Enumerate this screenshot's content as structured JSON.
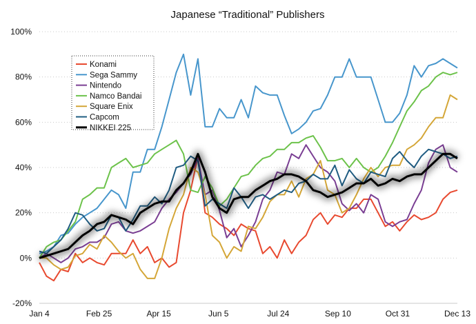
{
  "chart_data": {
    "type": "line",
    "title": "Japanese “Traditional” Publishers",
    "xlabel": "",
    "ylabel": "",
    "ylim": [
      -20,
      100
    ],
    "yticks": [
      "-20%",
      "0%",
      "20%",
      "40%",
      "60%",
      "80%",
      "100%"
    ],
    "xticks": [
      "Jan 4",
      "Feb 25",
      "Apr 15",
      "Jun 5",
      "Jul 24",
      "Sep 10",
      "Oct 31",
      "Dec 13"
    ],
    "grid": true,
    "legend_position": "top-left",
    "series": [
      {
        "name": "Konami",
        "color": "#e8492f",
        "values": [
          -2,
          -8,
          -10,
          -5,
          -6,
          2,
          -2,
          0,
          -2,
          -3,
          2,
          2,
          2,
          8,
          2,
          5,
          -2,
          0,
          -4,
          -2,
          20,
          30,
          45,
          20,
          18,
          15,
          13,
          10,
          15,
          13,
          12,
          2,
          5,
          0,
          8,
          2,
          7,
          10,
          17,
          20,
          15,
          19,
          18,
          22,
          22,
          26,
          26,
          20,
          14,
          16,
          12,
          16,
          19,
          17,
          18,
          20,
          26,
          29,
          30
        ]
      },
      {
        "name": "Sega Sammy",
        "color": "#4796cc",
        "values": [
          2,
          3,
          5,
          10,
          11,
          15,
          18,
          20,
          22,
          26,
          30,
          28,
          22,
          38,
          38,
          48,
          48,
          58,
          70,
          82,
          90,
          72,
          88,
          58,
          58,
          66,
          62,
          62,
          70,
          62,
          76,
          73,
          72,
          72,
          63,
          55,
          57,
          60,
          65,
          66,
          72,
          80,
          80,
          88,
          80,
          80,
          80,
          70,
          60,
          60,
          64,
          72,
          85,
          80,
          85,
          86,
          88,
          86,
          84
        ]
      },
      {
        "name": "Nintendo",
        "color": "#7a3e93",
        "values": [
          0,
          2,
          0,
          -2,
          0,
          4,
          5,
          7,
          7,
          9,
          15,
          16,
          12,
          11,
          12,
          14,
          16,
          22,
          26,
          29,
          33,
          37,
          44,
          28,
          30,
          21,
          9,
          13,
          5,
          10,
          16,
          26,
          30,
          38,
          37,
          46,
          44,
          50,
          45,
          40,
          38,
          34,
          24,
          21,
          24,
          20,
          28,
          26,
          16,
          14,
          16,
          17,
          24,
          30,
          42,
          48,
          50,
          40,
          38
        ]
      },
      {
        "name": "Namco Bandai",
        "color": "#6cc24a",
        "values": [
          0,
          5,
          7,
          8,
          12,
          16,
          26,
          28,
          31,
          31,
          40,
          42,
          44,
          40,
          41,
          42,
          46,
          48,
          50,
          52,
          46,
          30,
          29,
          36,
          31,
          23,
          26,
          31,
          36,
          37,
          41,
          44,
          45,
          48,
          48,
          51,
          51,
          53,
          54,
          49,
          43,
          43,
          44,
          40,
          44,
          40,
          38,
          40,
          45,
          51,
          58,
          65,
          69,
          74,
          76,
          80,
          82,
          81,
          82
        ]
      },
      {
        "name": "Square Enix",
        "color": "#d4a637",
        "values": [
          0,
          0,
          -3,
          -5,
          -4,
          1,
          2,
          6,
          4,
          10,
          7,
          3,
          0,
          2,
          -5,
          -9,
          -9,
          0,
          13,
          22,
          28,
          40,
          38,
          28,
          10,
          7,
          0,
          5,
          3,
          14,
          13,
          18,
          25,
          28,
          28,
          34,
          27,
          35,
          37,
          43,
          30,
          28,
          20,
          22,
          28,
          35,
          40,
          36,
          40,
          41,
          41,
          48,
          50,
          53,
          58,
          62,
          62,
          72,
          70
        ]
      },
      {
        "name": "Capcom",
        "color": "#1f5c82",
        "values": [
          3,
          2,
          5,
          8,
          13,
          20,
          19,
          15,
          12,
          13,
          19,
          18,
          12,
          17,
          23,
          23,
          27,
          24,
          30,
          40,
          41,
          45,
          43,
          23,
          26,
          24,
          22,
          31,
          27,
          22,
          27,
          28,
          26,
          28,
          30,
          29,
          33,
          34,
          37,
          35,
          35,
          41,
          32,
          39,
          35,
          33,
          38,
          37,
          36,
          44,
          47,
          43,
          40,
          45,
          48,
          47,
          46,
          44,
          45
        ]
      },
      {
        "name": "NIKKEI 225",
        "color": "#000000",
        "values": [
          0,
          1,
          2,
          3,
          4,
          7,
          10,
          12,
          15,
          16,
          19,
          18,
          17,
          15,
          20,
          22,
          24,
          25,
          25,
          30,
          33,
          38,
          46,
          38,
          27,
          22,
          20,
          26,
          27,
          27,
          30,
          32,
          34,
          35,
          37,
          37,
          36,
          34,
          30,
          29,
          27,
          28,
          29,
          31,
          33,
          33,
          35,
          32,
          33,
          35,
          34,
          36,
          37,
          37,
          40,
          43,
          46,
          46,
          44
        ]
      }
    ]
  }
}
